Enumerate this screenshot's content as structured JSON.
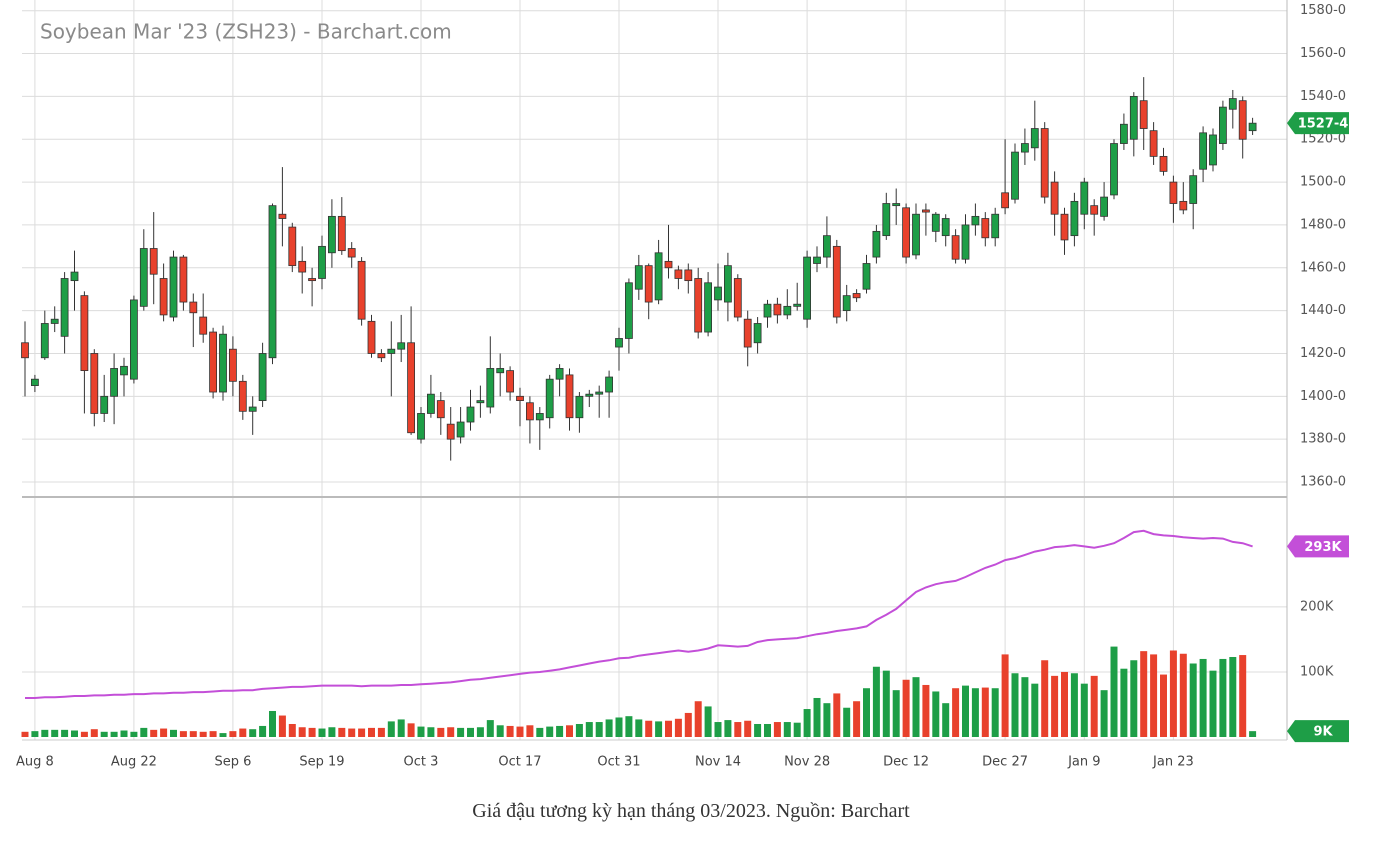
{
  "chart_data": {
    "type": "candlestick",
    "title": "Soybean Mar '23 (ZSH23) - Barchart.com",
    "categories": [
      null,
      "Aug 8",
      null,
      null,
      null,
      null,
      null,
      null,
      null,
      null,
      null,
      "Aug 22",
      null,
      null,
      null,
      null,
      null,
      null,
      null,
      null,
      null,
      "Sep 6",
      null,
      null,
      null,
      null,
      null,
      null,
      null,
      null,
      "Sep 19",
      null,
      null,
      null,
      null,
      null,
      null,
      null,
      null,
      null,
      "Oct 3",
      null,
      null,
      null,
      null,
      null,
      null,
      null,
      null,
      null,
      "Oct 17",
      null,
      null,
      null,
      null,
      null,
      null,
      null,
      null,
      null,
      "Oct 31",
      null,
      null,
      null,
      null,
      null,
      null,
      null,
      null,
      null,
      "Nov 14",
      null,
      null,
      null,
      null,
      null,
      null,
      null,
      null,
      "Nov 28",
      null,
      null,
      null,
      null,
      null,
      null,
      null,
      null,
      null,
      "Dec 12",
      null,
      null,
      null,
      null,
      null,
      null,
      null,
      null,
      null,
      "Dec 27",
      null,
      null,
      null,
      null,
      null,
      null,
      null,
      "Jan 9",
      null,
      null,
      null,
      null,
      null,
      null,
      null,
      null,
      "Jan 23",
      null,
      null,
      null,
      null,
      null,
      null,
      null,
      null
    ],
    "open": [
      1425,
      1405,
      1418,
      1434,
      1428,
      1454,
      1447,
      1420,
      1392,
      1400,
      1410,
      1408,
      1442,
      1469,
      1455,
      1437,
      1465,
      1444,
      1437,
      1430,
      1402,
      1422,
      1407,
      1393,
      1398,
      1418,
      1485,
      1479,
      1463,
      1455,
      1455,
      1467,
      1484,
      1469,
      1463,
      1435,
      1420,
      1420,
      1422,
      1425,
      1380,
      1392,
      1398,
      1387,
      1381,
      1388,
      1397,
      1395,
      1411,
      1412,
      1400,
      1397,
      1389,
      1390,
      1408,
      1410,
      1390,
      1400,
      1401,
      1402,
      1423,
      1427,
      1450,
      1461,
      1445,
      1463,
      1459,
      1459,
      1455,
      1430,
      1445,
      1444,
      1455,
      1436,
      1425,
      1437,
      1443,
      1438,
      1442,
      1436,
      1462,
      1465,
      1470,
      1440,
      1448,
      1450,
      1465,
      1475,
      1489,
      1488,
      1466,
      1487,
      1477,
      1475,
      1475,
      1464,
      1480,
      1483,
      1474,
      1495,
      1492,
      1514,
      1516,
      1525,
      1500,
      1485,
      1475,
      1485,
      1489,
      1484,
      1494,
      1518,
      1520,
      1538,
      1524,
      1512,
      1500,
      1491,
      1490,
      1506,
      1508,
      1518,
      1534,
      1538,
      1524
    ],
    "high": [
      1435,
      1410,
      1440,
      1442,
      1458,
      1468,
      1449,
      1422,
      1410,
      1420,
      1418,
      1447,
      1478,
      1486,
      1462,
      1468,
      1466,
      1448,
      1448,
      1432,
      1433,
      1428,
      1410,
      1400,
      1425,
      1490,
      1507,
      1481,
      1470,
      1460,
      1475,
      1492,
      1493,
      1472,
      1465,
      1438,
      1422,
      1435,
      1438,
      1442,
      1395,
      1410,
      1402,
      1395,
      1395,
      1403,
      1405,
      1428,
      1420,
      1414,
      1404,
      1400,
      1395,
      1410,
      1415,
      1413,
      1402,
      1403,
      1405,
      1412,
      1432,
      1455,
      1466,
      1462,
      1473,
      1480,
      1461,
      1462,
      1460,
      1458,
      1462,
      1467,
      1457,
      1440,
      1437,
      1445,
      1446,
      1450,
      1453,
      1468,
      1470,
      1484,
      1473,
      1452,
      1450,
      1466,
      1480,
      1495,
      1497,
      1490,
      1490,
      1490,
      1486,
      1485,
      1478,
      1485,
      1490,
      1486,
      1488,
      1520,
      1518,
      1525,
      1538,
      1528,
      1505,
      1488,
      1495,
      1502,
      1492,
      1500,
      1520,
      1532,
      1542,
      1549,
      1528,
      1516,
      1503,
      1500,
      1506,
      1526,
      1525,
      1538,
      1543,
      1540,
      1530
    ],
    "low": [
      1400,
      1402,
      1417,
      1430,
      1420,
      1440,
      1392,
      1386,
      1388,
      1387,
      1400,
      1406,
      1440,
      1443,
      1435,
      1435,
      1440,
      1423,
      1425,
      1399,
      1398,
      1400,
      1389,
      1382,
      1395,
      1415,
      1470,
      1458,
      1448,
      1442,
      1450,
      1460,
      1466,
      1460,
      1433,
      1418,
      1416,
      1400,
      1416,
      1382,
      1378,
      1390,
      1382,
      1370,
      1378,
      1384,
      1390,
      1392,
      1400,
      1398,
      1386,
      1378,
      1375,
      1385,
      1400,
      1384,
      1383,
      1395,
      1390,
      1390,
      1412,
      1420,
      1445,
      1436,
      1443,
      1455,
      1450,
      1448,
      1427,
      1428,
      1440,
      1435,
      1435,
      1414,
      1420,
      1432,
      1434,
      1436,
      1440,
      1432,
      1458,
      1460,
      1434,
      1435,
      1444,
      1448,
      1462,
      1473,
      1480,
      1462,
      1464,
      1475,
      1472,
      1470,
      1462,
      1462,
      1475,
      1470,
      1470,
      1485,
      1490,
      1508,
      1510,
      1490,
      1475,
      1466,
      1470,
      1478,
      1475,
      1482,
      1492,
      1515,
      1512,
      1515,
      1508,
      1503,
      1481,
      1485,
      1478,
      1500,
      1505,
      1515,
      1525,
      1511,
      1522
    ],
    "close": [
      1418,
      1408,
      1434,
      1436,
      1455,
      1458,
      1412,
      1392,
      1400,
      1413,
      1414,
      1445,
      1469,
      1457,
      1438,
      1465,
      1444,
      1439,
      1429,
      1402,
      1429,
      1407,
      1393,
      1395,
      1420,
      1489,
      1483,
      1461,
      1458,
      1454,
      1470,
      1484,
      1468,
      1465,
      1436,
      1420,
      1418,
      1422,
      1425,
      1383,
      1392,
      1401,
      1390,
      1380,
      1388,
      1395,
      1398,
      1413,
      1413,
      1402,
      1398,
      1389,
      1392,
      1408,
      1413,
      1390,
      1400,
      1401,
      1402,
      1409,
      1427,
      1453,
      1461,
      1444,
      1467,
      1460,
      1455,
      1454,
      1430,
      1453,
      1451,
      1461,
      1437,
      1423,
      1434,
      1443,
      1438,
      1442,
      1443,
      1465,
      1465,
      1475,
      1437,
      1447,
      1446,
      1462,
      1477,
      1490,
      1490,
      1465,
      1485,
      1486,
      1485,
      1483,
      1464,
      1480,
      1484,
      1474,
      1485,
      1488,
      1514,
      1518,
      1525,
      1493,
      1485,
      1473,
      1491,
      1500,
      1485,
      1493,
      1518,
      1527,
      1540,
      1525,
      1512,
      1505,
      1490,
      1487,
      1503,
      1523,
      1522,
      1535,
      1539,
      1520,
      1527.5
    ],
    "up_color": "#1e9e47",
    "down_color": "#e8412c",
    "ylim": [
      1353,
      1585
    ],
    "yticks": [
      {
        "value": 1360,
        "label": "1360-0"
      },
      {
        "value": 1380,
        "label": "1380-0"
      },
      {
        "value": 1400,
        "label": "1400-0"
      },
      {
        "value": 1420,
        "label": "1420-0"
      },
      {
        "value": 1440,
        "label": "1440-0"
      },
      {
        "value": 1460,
        "label": "1460-0"
      },
      {
        "value": 1480,
        "label": "1480-0"
      },
      {
        "value": 1500,
        "label": "1500-0"
      },
      {
        "value": 1520,
        "label": "1520-0"
      },
      {
        "value": 1540,
        "label": "1540-0"
      },
      {
        "value": 1560,
        "label": "1560-0"
      },
      {
        "value": 1580,
        "label": "1580-0"
      }
    ],
    "last_price": {
      "value": 1527.5,
      "label": "1527-4"
    },
    "grid": true,
    "volume": {
      "values": [
        8000,
        9000,
        11000,
        11000,
        11000,
        10000,
        8000,
        12000,
        8000,
        8000,
        10000,
        8000,
        14000,
        11000,
        13000,
        11000,
        9000,
        9000,
        8000,
        9000,
        6000,
        9000,
        13000,
        12000,
        17000,
        40000,
        33000,
        20000,
        15000,
        14000,
        13000,
        15000,
        14000,
        13000,
        13000,
        14000,
        14000,
        24000,
        27000,
        21000,
        16000,
        15000,
        14000,
        15000,
        14000,
        14000,
        15000,
        26000,
        18000,
        17000,
        16000,
        18000,
        14000,
        16000,
        17000,
        18000,
        20000,
        23000,
        23000,
        27000,
        30000,
        32000,
        27000,
        25000,
        24000,
        25000,
        28000,
        37000,
        55000,
        47000,
        23000,
        26000,
        23000,
        25000,
        20000,
        20000,
        23000,
        23000,
        22000,
        43000,
        60000,
        52000,
        67000,
        45000,
        55000,
        75000,
        108000,
        102000,
        72000,
        88000,
        92000,
        80000,
        70000,
        52000,
        75000,
        79000,
        75000,
        76000,
        75000,
        127000,
        98000,
        92000,
        82000,
        118000,
        94000,
        100000,
        98000,
        82000,
        94000,
        72000,
        139000,
        105000,
        118000,
        132000,
        127000,
        96000,
        133000,
        128000,
        113000,
        120000,
        102000,
        120000,
        123000,
        126000,
        9000
      ],
      "ylim": [
        0,
        369000
      ],
      "yticks": [
        {
          "value": 100000,
          "label": "100K"
        },
        {
          "value": 200000,
          "label": "200K"
        }
      ],
      "current_label": "9K"
    },
    "open_interest": {
      "values": [
        60000,
        60000,
        61000,
        61000,
        62000,
        63000,
        63000,
        64000,
        64000,
        65000,
        65000,
        66000,
        66000,
        67000,
        67000,
        68000,
        68000,
        69000,
        69000,
        70000,
        71000,
        71000,
        72000,
        72000,
        74000,
        75000,
        76000,
        77000,
        77000,
        78000,
        79000,
        79000,
        79000,
        79000,
        78000,
        79000,
        79000,
        79000,
        80000,
        80000,
        81000,
        82000,
        83000,
        84000,
        86000,
        88000,
        89000,
        91000,
        93000,
        95000,
        97000,
        99000,
        100000,
        102000,
        104000,
        107000,
        110000,
        113000,
        116000,
        118000,
        121000,
        122000,
        125000,
        127000,
        129000,
        131000,
        133000,
        131000,
        133000,
        136000,
        141000,
        140000,
        139000,
        140000,
        146000,
        149000,
        150000,
        151000,
        152000,
        155000,
        158000,
        160000,
        163000,
        165000,
        167000,
        170000,
        180000,
        188000,
        197000,
        210000,
        223000,
        230000,
        235000,
        238000,
        240000,
        246000,
        253000,
        260000,
        265000,
        272000,
        275000,
        280000,
        285000,
        288000,
        292000,
        293000,
        295000,
        293000,
        291000,
        294000,
        298000,
        306000,
        315000,
        317000,
        312000,
        310000,
        309000,
        307000,
        306000,
        305000,
        306000,
        305000,
        300000,
        298000,
        293000
      ],
      "color": "#c34fd8",
      "current_label": "293K"
    }
  },
  "caption": "Giá đậu tương kỳ hạn tháng 03/2023. Nguồn: Barchart"
}
